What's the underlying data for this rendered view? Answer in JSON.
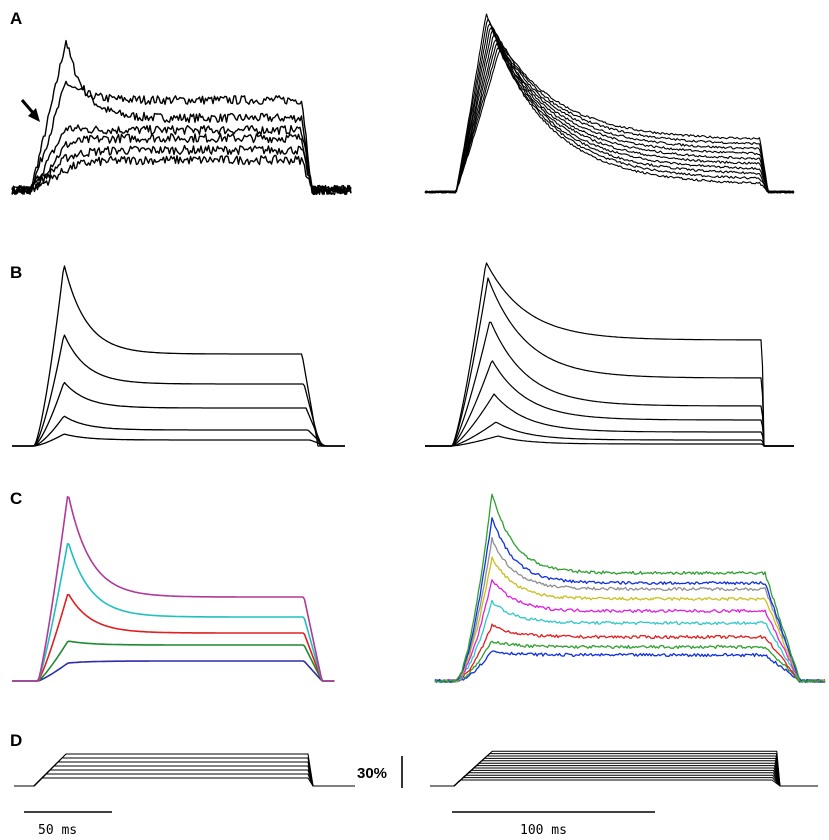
{
  "panels": {
    "a": {
      "label": "A"
    },
    "b": {
      "label": "B"
    },
    "c": {
      "label": "C"
    },
    "d": {
      "label": "D"
    }
  },
  "scale_bars": {
    "time_left": "50 ms",
    "time_right": "100 ms",
    "amplitude": "30%"
  },
  "colors": {
    "ink": "#000000",
    "left_c": [
      "#2d2da8",
      "#1e8a2e",
      "#e02020",
      "#20c0c0",
      "#b03a9a"
    ],
    "right_c": [
      "#1030e0",
      "#30a030",
      "#e02020",
      "#30c8c8",
      "#e020e0",
      "#c8c020",
      "#909090",
      "#1030e0",
      "#30a030"
    ]
  }
}
